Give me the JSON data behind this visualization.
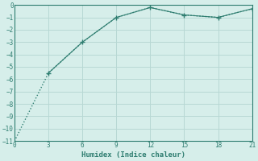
{
  "line1_x": [
    0,
    3,
    6,
    9,
    12,
    15,
    18,
    21
  ],
  "line1_y": [
    -11,
    -5.5,
    -3.0,
    -1.0,
    -0.2,
    -0.8,
    -1.0,
    -0.3
  ],
  "line2_x": [
    3,
    6,
    9,
    12,
    15,
    18,
    21
  ],
  "line2_y": [
    -5.5,
    -3.0,
    -1.0,
    -0.2,
    -0.8,
    -1.0,
    -0.3
  ],
  "line_color": "#2e7d70",
  "bg_color": "#d6eeea",
  "grid_color": "#b8d8d4",
  "xlabel": "Humidex (Indice chaleur)",
  "xlim": [
    0,
    21
  ],
  "ylim": [
    -11,
    0
  ],
  "xticks": [
    0,
    3,
    6,
    9,
    12,
    15,
    18,
    21
  ],
  "yticks": [
    0,
    -1,
    -2,
    -3,
    -4,
    -5,
    -6,
    -7,
    -8,
    -9,
    -10,
    -11
  ]
}
